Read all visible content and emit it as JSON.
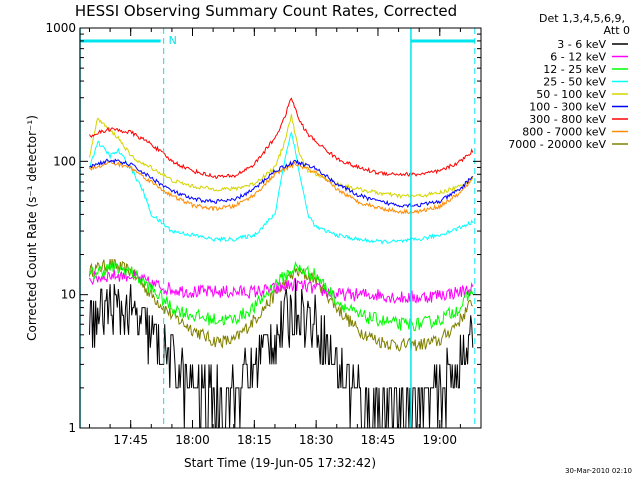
{
  "chart_data": {
    "type": "line",
    "title": "HESSI Observing Summary Count Rates, Corrected",
    "xlabel": "Start Time (19-Jun-05 17:32:42)",
    "ylabel": "Corrected Count Rate (s⁻¹ detector⁻¹)",
    "y_scale": "log",
    "ylim": [
      1,
      1000
    ],
    "xlim": [
      "17:32:42",
      "19:10:00"
    ],
    "x_ticks": [
      "17:45",
      "18:00",
      "18:15",
      "18:30",
      "18:45",
      "19:00"
    ],
    "y_ticks": [
      "1",
      "10",
      "100",
      "1000"
    ],
    "grid": false,
    "legend_position": "right",
    "legend_header": [
      "Det 1,3,4,5,6,9,",
      "Att 0"
    ],
    "night_marker": "N",
    "dashed_lines": [
      "17:53:00",
      "19:08:30"
    ],
    "solid_lines": [
      "17:32:42",
      "18:53:00"
    ],
    "series": [
      {
        "name": "3 - 6 keV",
        "color": "#000000",
        "x": [
          "17:35",
          "17:40",
          "17:45",
          "17:50",
          "17:55",
          "18:00",
          "18:05",
          "18:10",
          "18:15",
          "18:20",
          "18:25",
          "18:30",
          "18:35",
          "18:40",
          "18:45",
          "18:50",
          "18:55",
          "19:00",
          "19:05",
          "19:08"
        ],
        "values": [
          6,
          8,
          7,
          5,
          3,
          2,
          1.6,
          1.8,
          3,
          5,
          8,
          6,
          3,
          1.8,
          1.5,
          1.5,
          1.6,
          1.8,
          3,
          4.5
        ]
      },
      {
        "name": "6 - 12 keV",
        "color": "#ff00ff",
        "x": [
          "17:35",
          "17:40",
          "17:45",
          "17:50",
          "17:55",
          "18:00",
          "18:05",
          "18:10",
          "18:15",
          "18:20",
          "18:25",
          "18:30",
          "18:35",
          "18:40",
          "18:45",
          "18:50",
          "18:55",
          "19:00",
          "19:05",
          "19:08"
        ],
        "values": [
          13,
          14,
          14,
          12,
          11,
          10.5,
          10.5,
          10.5,
          10.5,
          11,
          12,
          11,
          10,
          10,
          10,
          9.5,
          9.5,
          10,
          10.5,
          11
        ]
      },
      {
        "name": "12 - 25 keV",
        "color": "#00ff00",
        "x": [
          "17:35",
          "17:40",
          "17:45",
          "17:50",
          "17:55",
          "18:00",
          "18:05",
          "18:10",
          "18:15",
          "18:20",
          "18:25",
          "18:30",
          "18:35",
          "18:40",
          "18:45",
          "18:50",
          "18:55",
          "19:00",
          "19:05",
          "19:08"
        ],
        "values": [
          14,
          16,
          15,
          11,
          8,
          7,
          6.5,
          6.5,
          8,
          12,
          16,
          14,
          9,
          7,
          6.5,
          6,
          6,
          6.5,
          8,
          11
        ]
      },
      {
        "name": "25 - 50 keV",
        "color": "#00ffff",
        "x": [
          "17:35",
          "17:37",
          "17:40",
          "17:42",
          "17:45",
          "17:48",
          "17:50",
          "17:55",
          "18:00",
          "18:05",
          "18:10",
          "18:15",
          "18:20",
          "18:22",
          "18:24",
          "18:26",
          "18:28",
          "18:30",
          "18:35",
          "18:40",
          "18:45",
          "18:50",
          "18:55",
          "19:00",
          "19:05",
          "19:08"
        ],
        "values": [
          90,
          140,
          110,
          120,
          90,
          60,
          40,
          30,
          28,
          26,
          26,
          28,
          40,
          90,
          170,
          80,
          40,
          32,
          28,
          26,
          25,
          25,
          26,
          28,
          32,
          35
        ]
      },
      {
        "name": "50 - 100 keV",
        "color": "#d4d400",
        "x": [
          "17:35",
          "17:37",
          "17:40",
          "17:42",
          "17:45",
          "17:48",
          "17:50",
          "17:55",
          "18:00",
          "18:05",
          "18:10",
          "18:15",
          "18:20",
          "18:22",
          "18:24",
          "18:26",
          "18:28",
          "18:30",
          "18:35",
          "18:40",
          "18:45",
          "18:50",
          "18:55",
          "19:00",
          "19:05",
          "19:08"
        ],
        "values": [
          110,
          210,
          170,
          150,
          110,
          95,
          90,
          72,
          65,
          62,
          62,
          68,
          90,
          130,
          220,
          110,
          85,
          80,
          68,
          62,
          58,
          55,
          55,
          58,
          65,
          75
        ]
      },
      {
        "name": "100 - 300 keV",
        "color": "#0000ff",
        "x": [
          "17:35",
          "17:40",
          "17:45",
          "17:50",
          "17:55",
          "18:00",
          "18:05",
          "18:10",
          "18:15",
          "18:20",
          "18:25",
          "18:30",
          "18:35",
          "18:40",
          "18:45",
          "18:50",
          "18:55",
          "19:00",
          "19:05",
          "19:08"
        ],
        "values": [
          92,
          102,
          95,
          75,
          60,
          52,
          50,
          51,
          62,
          85,
          100,
          88,
          68,
          56,
          50,
          47,
          47,
          50,
          62,
          78
        ]
      },
      {
        "name": "300 - 800 keV",
        "color": "#ff0000",
        "x": [
          "17:35",
          "17:40",
          "17:45",
          "17:50",
          "17:55",
          "18:00",
          "18:05",
          "18:10",
          "18:15",
          "18:20",
          "18:22",
          "18:24",
          "18:26",
          "18:28",
          "18:30",
          "18:35",
          "18:40",
          "18:45",
          "18:50",
          "18:55",
          "19:00",
          "19:05",
          "19:08"
        ],
        "values": [
          155,
          175,
          165,
          135,
          100,
          85,
          77,
          77,
          95,
          150,
          200,
          300,
          200,
          160,
          140,
          105,
          90,
          82,
          80,
          80,
          84,
          100,
          120
        ]
      },
      {
        "name": "800 - 7000 keV",
        "color": "#ff8c00",
        "x": [
          "17:35",
          "17:40",
          "17:45",
          "17:50",
          "17:55",
          "18:00",
          "18:05",
          "18:10",
          "18:15",
          "18:20",
          "18:25",
          "18:30",
          "18:35",
          "18:40",
          "18:45",
          "18:50",
          "18:55",
          "19:00",
          "19:05",
          "19:08"
        ],
        "values": [
          88,
          98,
          90,
          70,
          55,
          47,
          44,
          46,
          56,
          80,
          96,
          82,
          62,
          50,
          45,
          42,
          42,
          46,
          58,
          74
        ]
      },
      {
        "name": "7000 - 20000 keV",
        "color": "#808000",
        "x": [
          "17:35",
          "17:40",
          "17:45",
          "17:50",
          "17:55",
          "18:00",
          "18:05",
          "18:10",
          "18:15",
          "18:20",
          "18:25",
          "18:30",
          "18:35",
          "18:40",
          "18:45",
          "18:50",
          "18:55",
          "19:00",
          "19:05",
          "19:08"
        ],
        "values": [
          15,
          17,
          15,
          10,
          7,
          5.5,
          4.5,
          4.5,
          6.5,
          10,
          15,
          13,
          8,
          5.5,
          4.5,
          4.2,
          4.2,
          4.5,
          6.5,
          9
        ]
      }
    ]
  },
  "footer": {
    "timestamp": "30-Mar-2010 02:10"
  }
}
